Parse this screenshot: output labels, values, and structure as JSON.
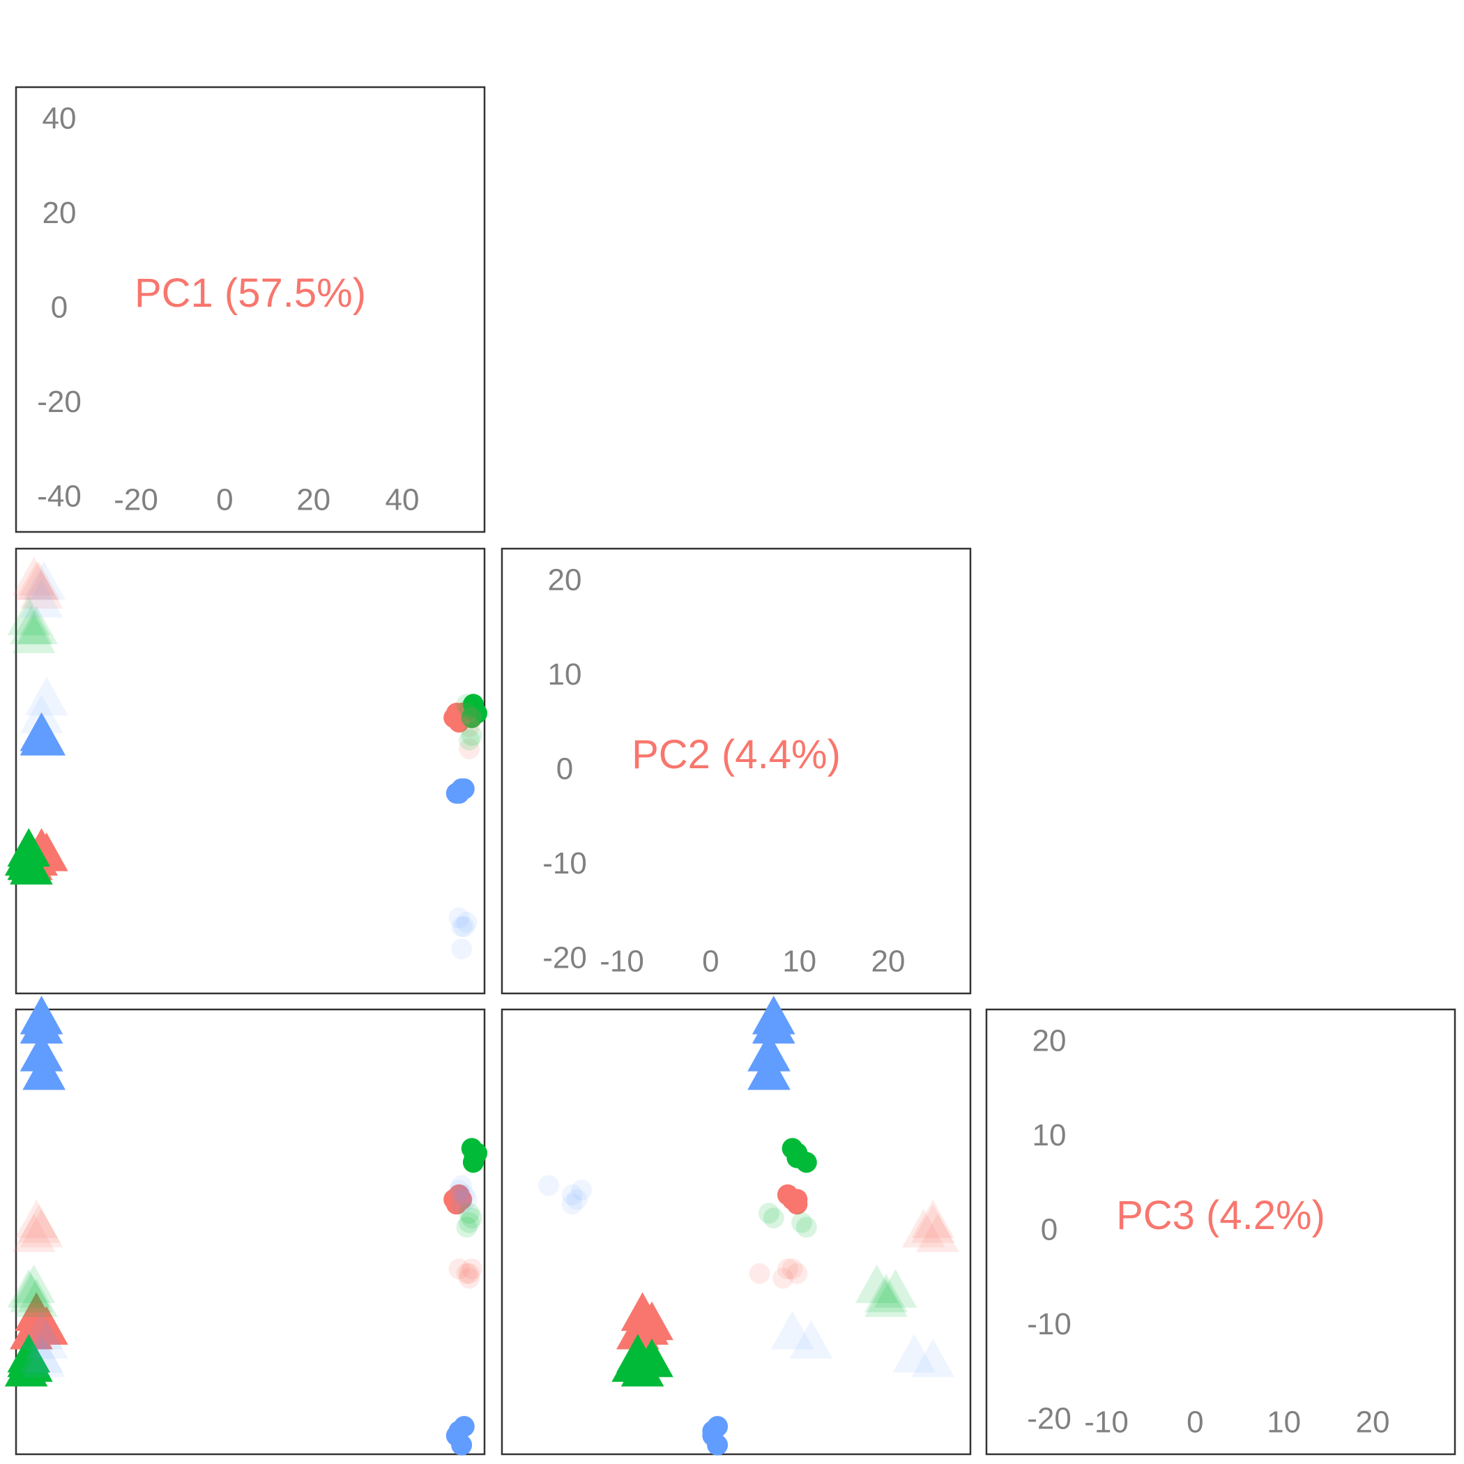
{
  "chart_data": {
    "type": "scatter",
    "panel_type": "pairs",
    "variables": [
      {
        "key": "PC1",
        "label": "PC1 (57.5%)",
        "range": [
          -45,
          47
        ],
        "yticks": [
          "40",
          "20",
          "0",
          "-20",
          "-40"
        ],
        "xticks": [
          "-20",
          "0",
          "20",
          "40"
        ]
      },
      {
        "key": "PC2",
        "label": "PC2 (4.4%)",
        "range": [
          -25,
          25
        ],
        "yticks": [
          "20",
          "10",
          "0",
          "-10",
          "-20"
        ],
        "xticks": [
          "-10",
          "0",
          "10",
          "20"
        ]
      },
      {
        "key": "PC3",
        "label": "PC3 (4.2%)",
        "range": [
          -22,
          26
        ],
        "yticks": [
          "20",
          "10",
          "0",
          "-10",
          "-20"
        ],
        "xticks": [
          "-10",
          "0",
          "10",
          "20"
        ]
      }
    ],
    "colors": {
      "red": "#F8766D",
      "green": "#00BA38",
      "blue": "#619CFF"
    },
    "grid": false,
    "legend": "none",
    "series": [
      {
        "color": "red",
        "shape": "triangle",
        "alpha": 1.0,
        "points": [
          [
            -41,
            -10,
            -7
          ],
          [
            -40,
            -9,
            -8
          ],
          [
            -39,
            -9.5,
            -8.5
          ],
          [
            -42,
            -10.5,
            -9
          ]
        ]
      },
      {
        "color": "green",
        "shape": "triangle",
        "alpha": 1.0,
        "points": [
          [
            -42.5,
            -9,
            -12
          ],
          [
            -43,
            -10,
            -13
          ],
          [
            -42,
            -11,
            -12.5
          ],
          [
            -42.5,
            -10.5,
            -11.5
          ]
        ]
      },
      {
        "color": "blue",
        "shape": "triangle",
        "alpha": 1.0,
        "points": [
          [
            -40,
            4,
            25
          ],
          [
            -40,
            4,
            24
          ],
          [
            -40,
            3.5,
            21
          ],
          [
            -39.5,
            3.5,
            19
          ]
        ]
      },
      {
        "color": "red",
        "shape": "triangle",
        "alpha": 0.15,
        "points": [
          [
            -41,
            21,
            3
          ],
          [
            -40,
            20,
            2
          ],
          [
            -41.5,
            21.5,
            1.5
          ],
          [
            -40.5,
            21,
            2.5
          ]
        ]
      },
      {
        "color": "green",
        "shape": "triangle",
        "alpha": 0.15,
        "points": [
          [
            -42,
            16,
            -5
          ],
          [
            -41.5,
            15,
            -4
          ],
          [
            -42.5,
            17,
            -4.5
          ],
          [
            -41,
            16,
            -5.5
          ]
        ]
      },
      {
        "color": "blue",
        "shape": "triangle",
        "alpha": 0.1,
        "points": [
          [
            -40,
            6,
            -9
          ],
          [
            -39,
            8,
            -10
          ],
          [
            -39.5,
            21,
            -12
          ],
          [
            -40,
            19,
            -11.5
          ]
        ]
      },
      {
        "color": "red",
        "shape": "circle",
        "alpha": 1.0,
        "points": [
          [
            41.5,
            6.5,
            5
          ],
          [
            42.5,
            6.5,
            5.5
          ],
          [
            41,
            6,
            5.5
          ],
          [
            42,
            5.5,
            6
          ]
        ]
      },
      {
        "color": "green",
        "shape": "circle",
        "alpha": 1.0,
        "points": [
          [
            44.5,
            6,
            11
          ],
          [
            45,
            6.5,
            10
          ],
          [
            44.8,
            7.5,
            9.5
          ],
          [
            45.5,
            6.5,
            10.5
          ]
        ]
      },
      {
        "color": "blue",
        "shape": "circle",
        "alpha": 1.0,
        "points": [
          [
            41.5,
            -2.5,
            -20
          ],
          [
            43,
            -2,
            -19
          ],
          [
            42,
            -2.5,
            -19.5
          ],
          [
            42.5,
            -2,
            -21
          ]
        ]
      },
      {
        "color": "red",
        "shape": "circle",
        "alpha": 0.15,
        "points": [
          [
            42,
            5.5,
            -2
          ],
          [
            43.5,
            6.5,
            -2.5
          ],
          [
            44,
            5,
            -3
          ],
          [
            44.5,
            6,
            -2
          ],
          [
            44,
            2.5,
            -2.5
          ]
        ]
      },
      {
        "color": "green",
        "shape": "circle",
        "alpha": 0.15,
        "points": [
          [
            44,
            3.5,
            4
          ],
          [
            44.5,
            4,
            3.5
          ],
          [
            44,
            7,
            3
          ],
          [
            43.5,
            7.5,
            2.5
          ]
        ]
      },
      {
        "color": "blue",
        "shape": "circle",
        "alpha": 0.1,
        "points": [
          [
            42.5,
            -20,
            7
          ],
          [
            43,
            -17.5,
            6
          ],
          [
            43.5,
            -17,
            5.5
          ],
          [
            42.5,
            -17.5,
            5
          ],
          [
            42,
            -16.5,
            6.5
          ]
        ]
      }
    ]
  }
}
